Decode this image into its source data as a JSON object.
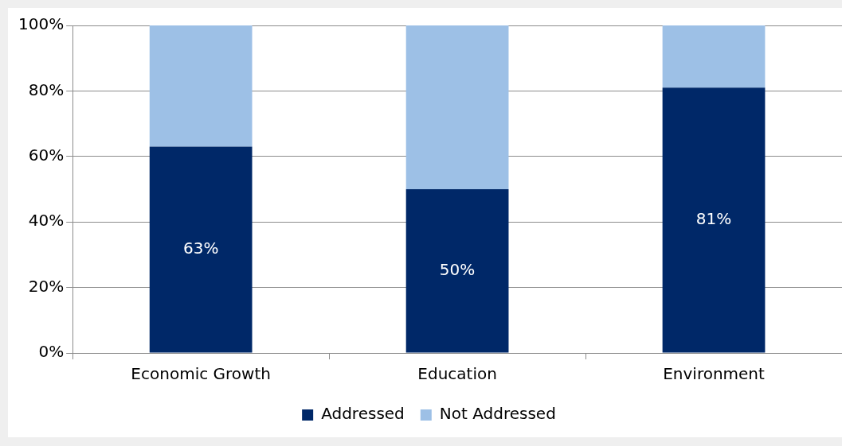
{
  "chart_data": {
    "type": "bar",
    "stacked": true,
    "categories": [
      "Economic Growth",
      "Education",
      "Environment"
    ],
    "series": [
      {
        "name": "Addressed",
        "color": "#002868",
        "values": [
          63,
          50,
          81
        ],
        "value_labels": [
          "63%",
          "50%",
          "81%"
        ]
      },
      {
        "name": "Not Addressed",
        "color": "#9dc0e6",
        "values": [
          37,
          50,
          19
        ]
      }
    ],
    "ylim": [
      0,
      100
    ],
    "yticks": [
      {
        "value": 0,
        "label": "0%"
      },
      {
        "value": 20,
        "label": "20%"
      },
      {
        "value": 40,
        "label": "40%"
      },
      {
        "value": 60,
        "label": "60%"
      },
      {
        "value": 80,
        "label": "80%"
      },
      {
        "value": 100,
        "label": "100%"
      }
    ],
    "grid": "y",
    "legend": "bottom"
  }
}
